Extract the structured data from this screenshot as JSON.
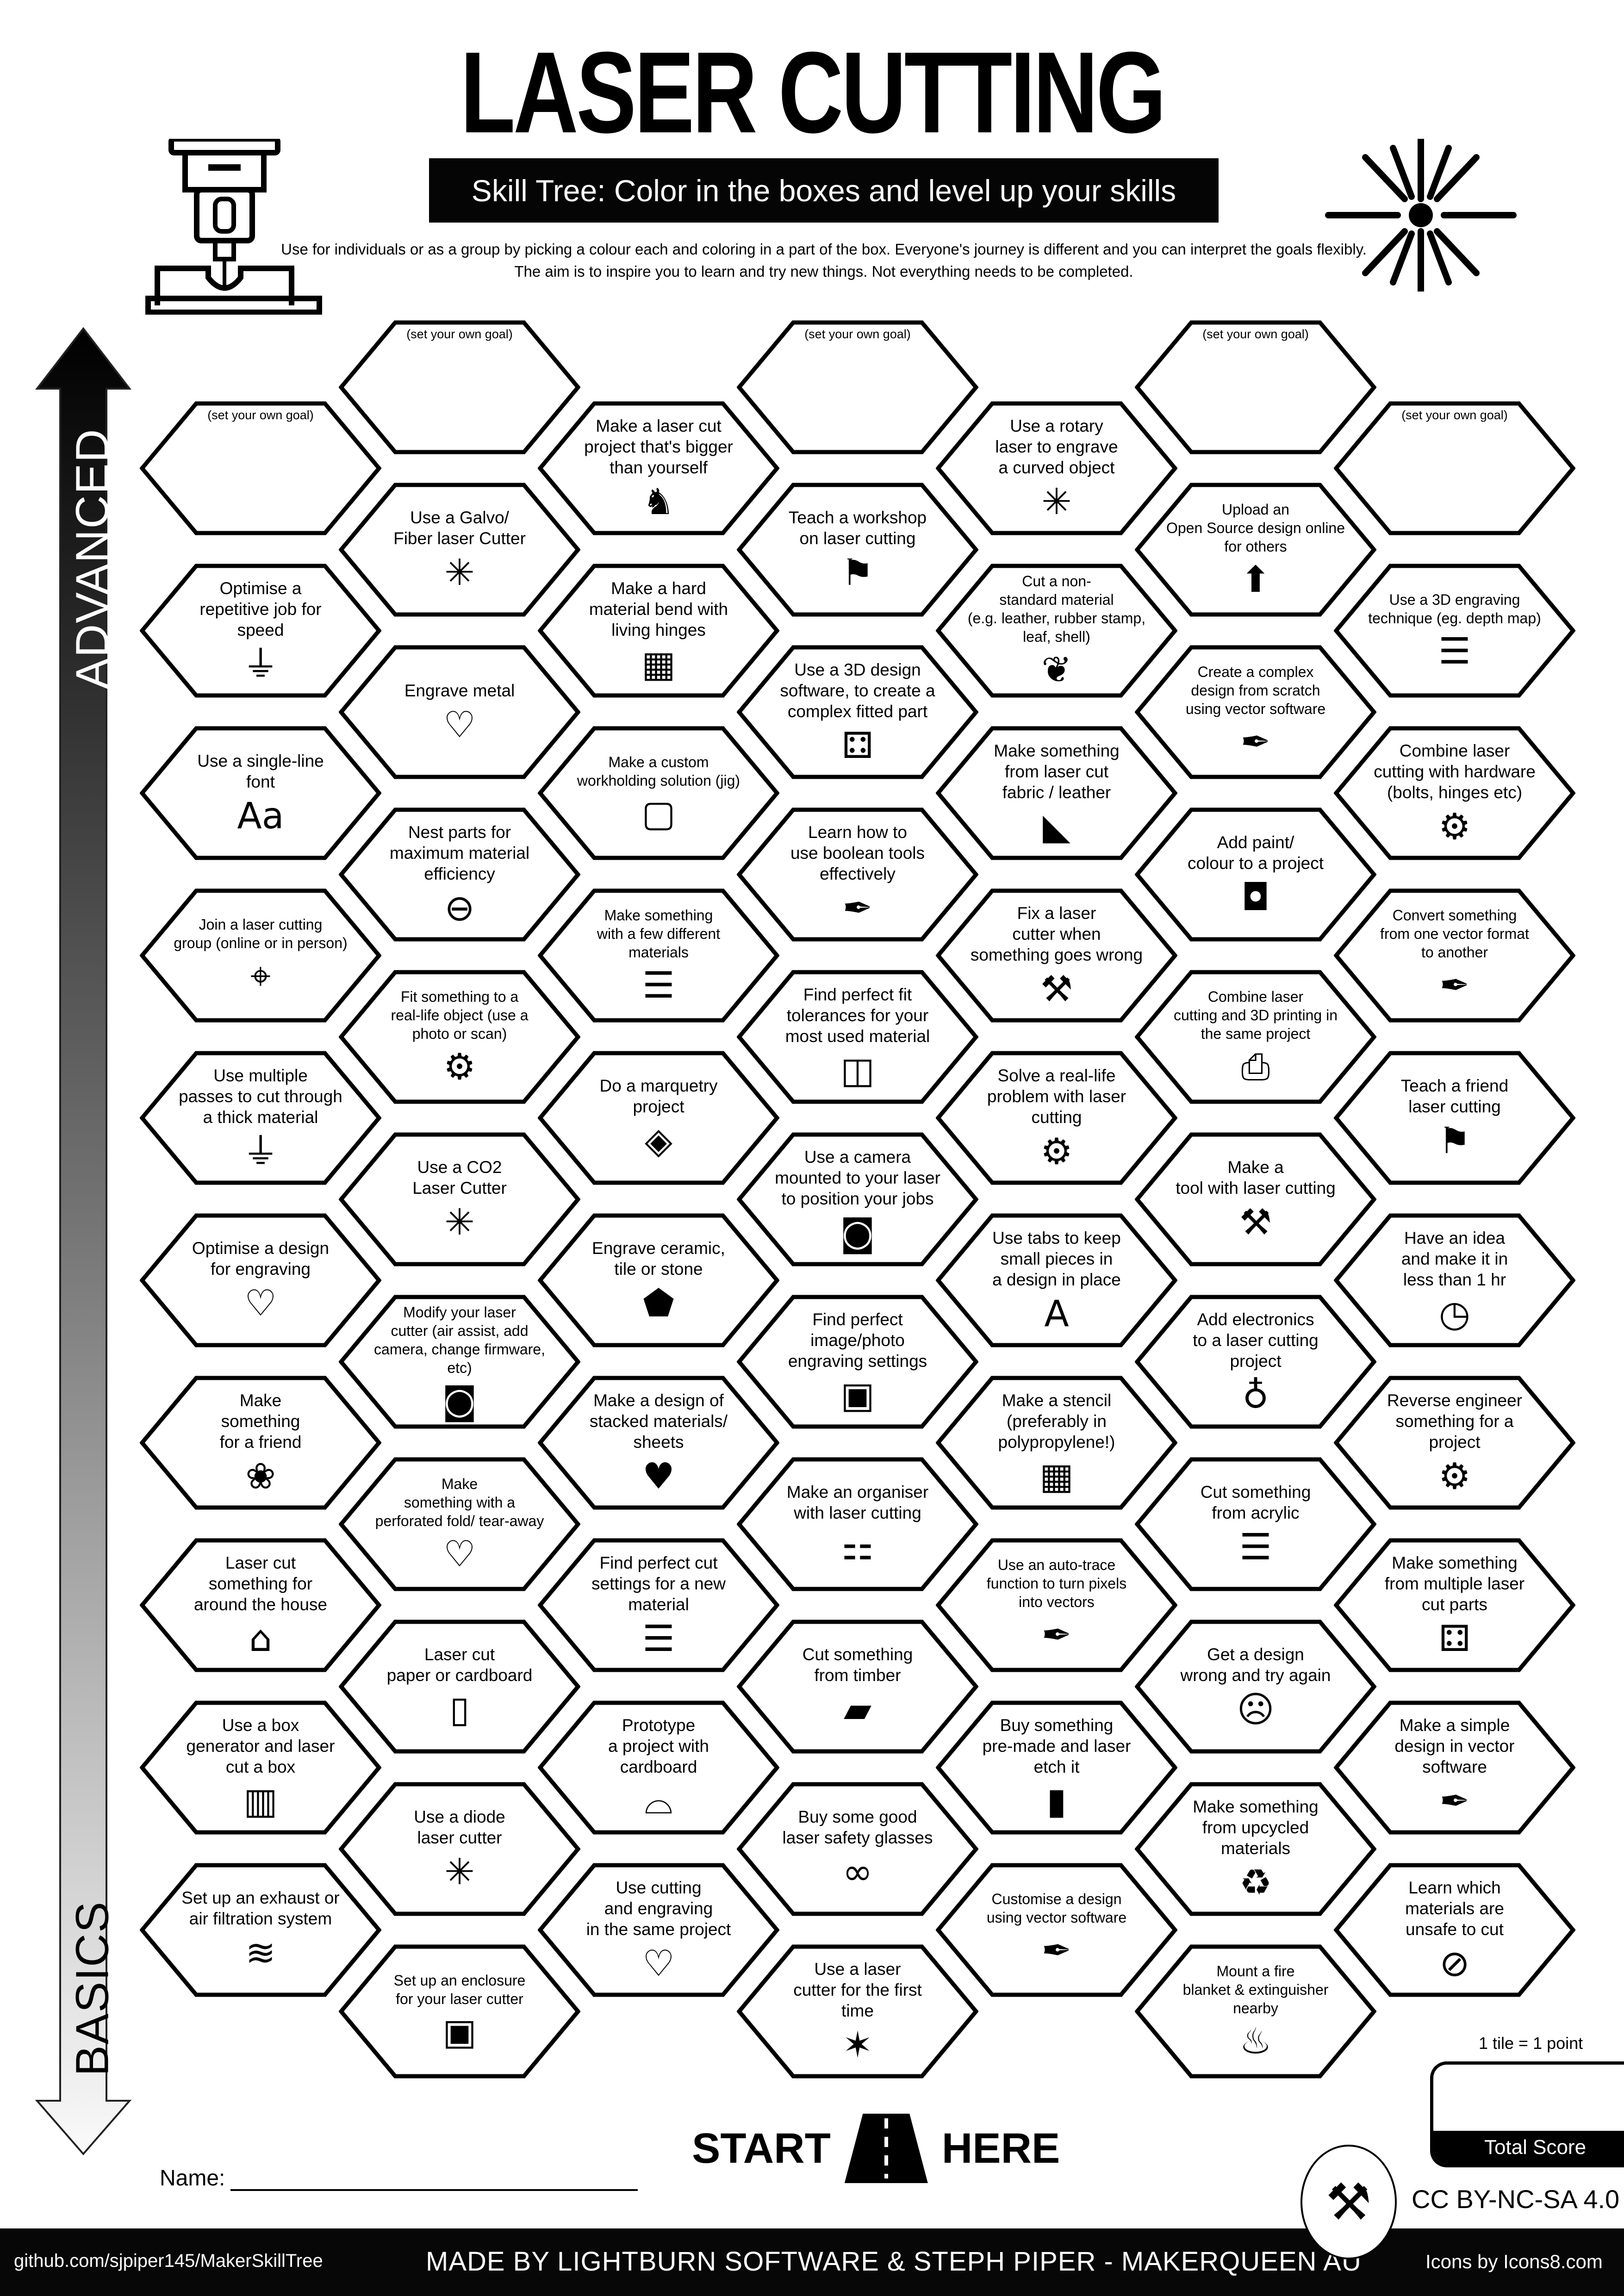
{
  "header": {
    "title": "LASER CUTTING",
    "subtitle": "Skill Tree:  Color in the boxes and level up your skills",
    "description": "Use for individuals or as a group by picking a colour each and coloring in a part of the box.  Everyone's journey is different and you can interpret the goals flexibly.  The aim is to inspire you to learn and try new things. Not everything needs to be completed.",
    "left_icon": "laser-cutter-head-icon",
    "right_icon": "laser-burst-icon"
  },
  "axis": {
    "top_label": "ADVANCED",
    "bottom_label": "BASICS"
  },
  "columns": [
    [
      {
        "text": "(set your own goal)",
        "icon": "",
        "goal": true
      },
      {
        "text": "Optimise a\nrepetitive job for\nspeed",
        "icon": "laser-machine"
      },
      {
        "text": "Use a single-line\nfont",
        "icon": "font-aa"
      },
      {
        "text": "Join a laser cutting\ngroup (online or in person)",
        "icon": "location-pin",
        "small": true
      },
      {
        "text": "Use multiple\npasses to cut through\na thick material",
        "icon": "laser-machine"
      },
      {
        "text": "Optimise a design\nfor engraving",
        "icon": "heart-laser"
      },
      {
        "text": "Make\nsomething\nfor a friend",
        "icon": "gift-bow"
      },
      {
        "text": "Laser cut\nsomething for\naround the house",
        "icon": "house"
      },
      {
        "text": "Use a box\ngenerator and laser\ncut a box",
        "icon": "box-book"
      },
      {
        "text": "Set up an exhaust or\nair filtration system",
        "icon": "wind"
      }
    ],
    [
      {
        "text": "(set your own goal)",
        "icon": "",
        "goal": true
      },
      {
        "text": "Use a Galvo/\nFiber laser Cutter",
        "icon": "laser-burst"
      },
      {
        "text": "Engrave metal",
        "icon": "heart-laser"
      },
      {
        "text": "Nest parts for\nmaximum material\nefficiency",
        "icon": "conveyor"
      },
      {
        "text": "Fit something to a\nreal-life object (use a\nphoto or scan)",
        "icon": "gear-hand",
        "small": true
      },
      {
        "text": "Use a CO2\nLaser Cutter",
        "icon": "laser-burst"
      },
      {
        "text": "Modify  your laser\ncutter (air assist, add\ncamera, change firmware,\netc)",
        "icon": "camera",
        "small": true
      },
      {
        "text": "Make\nsomething with a\nperforated fold/ tear-away",
        "icon": "dotted-heart",
        "small": true
      },
      {
        "text": "Laser cut\npaper or cardboard",
        "icon": "paper"
      },
      {
        "text": "Use a diode\nlaser cutter",
        "icon": "laser-burst"
      },
      {
        "text": "Set up an enclosure\nfor your laser cutter",
        "icon": "enclosure",
        "small": true
      }
    ],
    [
      {
        "text": "Make a laser cut\nproject  that's bigger\nthan yourself",
        "icon": "elephant"
      },
      {
        "text": "Make a hard\nmaterial bend with\nliving hinges",
        "icon": "living-hinge"
      },
      {
        "text": "Make a custom\nworkholding solution (jig)",
        "icon": "jig-frame",
        "small": true
      },
      {
        "text": "Make something\nwith a few different\nmaterials",
        "icon": "layers",
        "small": true
      },
      {
        "text": "Do a marquetry\nproject",
        "icon": "marquetry"
      },
      {
        "text": "Engrave ceramic,\ntile or stone",
        "icon": "stone"
      },
      {
        "text": "Make a design of\nstacked materials/\nsheets",
        "icon": "striped-heart"
      },
      {
        "text": "Find perfect cut\nsettings for a new\nmaterial",
        "icon": "layers"
      },
      {
        "text": "Prototype\na project with\ncardboard",
        "icon": "cardboard"
      },
      {
        "text": "Use cutting\nand engraving\nin the same project",
        "icon": "heart-laser"
      }
    ],
    [
      {
        "text": "(set your own goal)",
        "icon": "",
        "goal": true
      },
      {
        "text": "Teach a workshop\non laser cutting",
        "icon": "teacher"
      },
      {
        "text": "Use a 3D design\nsoftware, to create a\ncomplex fitted part",
        "icon": "fitted-parts"
      },
      {
        "text": "Learn how to\nuse boolean tools\neffectively",
        "icon": "pen-tool"
      },
      {
        "text": "Find perfect fit\ntolerances for your\nmost used material",
        "icon": "box-tolerance"
      },
      {
        "text": "Use a camera\nmounted to your laser\nto position your jobs",
        "icon": "camera"
      },
      {
        "text": "Find perfect\nimage/photo\nengraving settings",
        "icon": "portrait"
      },
      {
        "text": "Make an organiser\nwith laser cutting",
        "icon": "person-boxes"
      },
      {
        "text": "Cut something\nfrom timber",
        "icon": "timber"
      },
      {
        "text": "Buy some good\nlaser safety glasses",
        "icon": "safety-glasses"
      },
      {
        "text": "Use a laser\ncutter for the first\ntime",
        "icon": "party-popper"
      }
    ],
    [
      {
        "text": "Use a rotary\nlaser to engrave\na curved object",
        "icon": "laser-burst"
      },
      {
        "text": "Cut a non-\nstandard material\n(e.g. leather, rubber stamp,\nleaf, shell)",
        "icon": "leaf",
        "small": true
      },
      {
        "text": "Make something\nfrom laser cut\nfabric / leather",
        "icon": "leather"
      },
      {
        "text": "Fix a laser\ncutter when\nsomething goes wrong",
        "icon": "tools"
      },
      {
        "text": "Solve a real-life\nproblem with laser\ncutting",
        "icon": "gear-hand"
      },
      {
        "text": "Use tabs to keep\nsmall pieces in\na design in place",
        "icon": "letter-a"
      },
      {
        "text": "Make a stencil\n(preferably in\npolypropylene!)",
        "icon": "stencil"
      },
      {
        "text": "Use an auto-trace\nfunction to turn pixels\ninto vectors",
        "icon": "pen-tool",
        "small": true
      },
      {
        "text": "Buy something\npre-made and laser\netch it",
        "icon": "knife-board"
      },
      {
        "text": "Customise a design\nusing vector software",
        "icon": "pen-tool",
        "small": true
      }
    ],
    [
      {
        "text": "(set your own goal)",
        "icon": "",
        "goal": true
      },
      {
        "text": "Upload an\nOpen Source design online\nfor others",
        "icon": "upload",
        "small": true
      },
      {
        "text": "Create a complex\ndesign from scratch\nusing vector software",
        "icon": "pen-tool",
        "small": true
      },
      {
        "text": "Add paint/\ncolour to a project",
        "icon": "paint-bucket"
      },
      {
        "text": "Combine laser\ncutting and 3D printing in\nthe same project",
        "icon": "printer",
        "small": true
      },
      {
        "text": "Make a\ntool with laser cutting",
        "icon": "tools"
      },
      {
        "text": "Add electronics\nto a laser cutting\nproject",
        "icon": "led"
      },
      {
        "text": "Cut something\nfrom acrylic",
        "icon": "layers"
      },
      {
        "text": "Get a design\nwrong and try again",
        "icon": "facepalm"
      },
      {
        "text": "Make something\nfrom upcycled\nmaterials",
        "icon": "recycle"
      },
      {
        "text": "Mount a fire\nblanket & extinguisher\nnearby",
        "icon": "fire-extinguisher",
        "small": true
      }
    ],
    [
      {
        "text": "(set your own goal)",
        "icon": "",
        "goal": true
      },
      {
        "text": "Use a 3D engraving\ntechnique (eg. depth map)",
        "icon": "layers",
        "small": true
      },
      {
        "text": "Combine laser\ncutting with hardware\n(bolts, hinges etc)",
        "icon": "bolts"
      },
      {
        "text": "Convert something\nfrom one vector format\nto another",
        "icon": "pen-tool",
        "small": true
      },
      {
        "text": "Teach a friend\nlaser cutting",
        "icon": "teacher"
      },
      {
        "text": "Have an idea\nand make it in\nless than 1 hr",
        "icon": "clock"
      },
      {
        "text": "Reverse engineer\nsomething for a\nproject",
        "icon": "gear-hand"
      },
      {
        "text": "Make something\nfrom multiple laser\ncut parts",
        "icon": "fitted-parts"
      },
      {
        "text": "Make a simple\ndesign in vector\nsoftware",
        "icon": "pen-tool"
      },
      {
        "text": "Learn which\nmaterials are\nunsafe to cut",
        "icon": "no-sign"
      }
    ]
  ],
  "footer_area": {
    "start": "START",
    "here": "HERE",
    "name_label": "Name:",
    "tile_note": "1 tile = 1 point",
    "total_score": "Total Score",
    "license": "CC BY-NC-SA 4.0",
    "github": "github.com/sjpiper145/MakerSkillTree",
    "made_by": "MADE BY LIGHTBURN SOFTWARE & STEPH PIPER  -  MAKERQUEEN AU",
    "icons_credit": "Icons by Icons8.com",
    "logo": "maker-queen-logo"
  },
  "colors": {
    "ink": "#000000",
    "paper": "#ffffff",
    "footer": "#070708"
  }
}
